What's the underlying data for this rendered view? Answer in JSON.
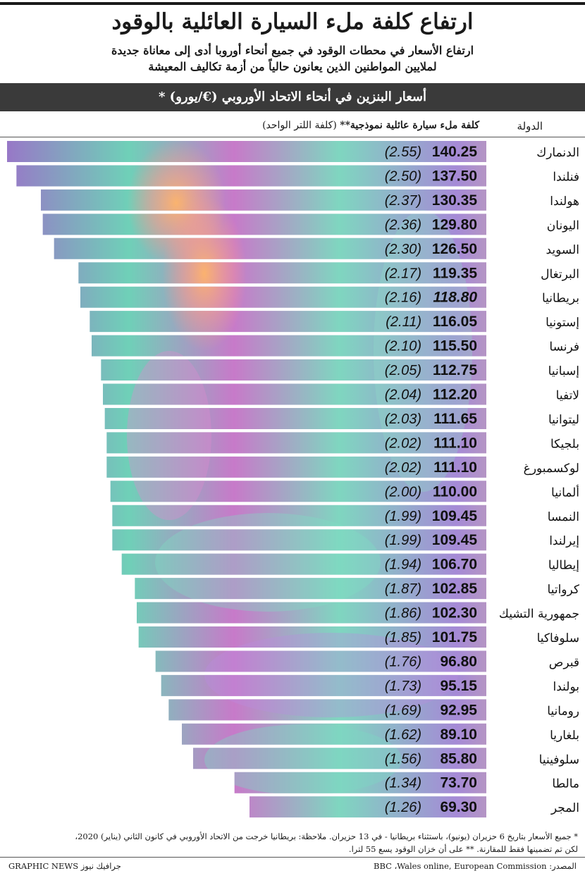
{
  "header": {
    "title": "ارتفاع كلفة ملء السيارة العائلية بالوقود",
    "subtitle_line1": "ارتفاع الأسعار في محطات الوقود في جميع أنحاء أوروبا أدى إلى معاناة جديدة",
    "subtitle_line2": "لملايين المواطنين الذين يعانون حالياً من أزمة تكاليف المعيشة",
    "banner": "أسعار البنزين في أنحاء الاتحاد الأوروبي (€/يورو) *"
  },
  "columns": {
    "country": "الدولة",
    "cost_bold": "كلفة ملء سيارة عائلية نموذجية**",
    "cost_note": " (كلفة اللتر الواحد)"
  },
  "chart_data": {
    "type": "bar",
    "orientation": "horizontal",
    "title": "أسعار البنزين في أنحاء الاتحاد الأوروبي (€/يورو) *",
    "units": "€",
    "categories": [
      "الدنمارك",
      "فنلندا",
      "هولندا",
      "اليونان",
      "السويد",
      "البرتغال",
      "بريطانيا",
      "إستونيا",
      "فرنسا",
      "إسبانيا",
      "لاتفيا",
      "ليتوانيا",
      "بلجيكا",
      "لوكسمبورغ",
      "ألمانيا",
      "النمسا",
      "إيرلندا",
      "إيطاليا",
      "كرواتيا",
      "جمهورية التشيك",
      "سلوفاكيا",
      "قبرص",
      "بولندا",
      "رومانيا",
      "بلغاريا",
      "سلوفينيا",
      "مالطا",
      "المجر"
    ],
    "values": [
      140.25,
      137.5,
      130.35,
      129.8,
      126.5,
      119.35,
      118.8,
      116.05,
      115.5,
      112.75,
      112.2,
      111.65,
      111.1,
      111.1,
      110.0,
      109.45,
      109.45,
      106.7,
      102.85,
      102.3,
      101.75,
      96.8,
      95.15,
      92.95,
      89.1,
      85.8,
      73.7,
      69.3
    ],
    "value_labels": [
      "140.25",
      "137.50",
      "130.35",
      "129.80",
      "126.50",
      "119.35",
      "118.80",
      "116.05",
      "115.50",
      "112.75",
      "112.20",
      "111.65",
      "111.10",
      "111.10",
      "110.00",
      "109.45",
      "109.45",
      "106.70",
      "102.85",
      "102.30",
      "101.75",
      "96.80",
      "95.15",
      "92.95",
      "89.10",
      "85.80",
      "73.70",
      "69.30"
    ],
    "per_litre": [
      "(2.55)",
      "(2.50)",
      "(2.37)",
      "(2.36)",
      "(2.30)",
      "(2.17)",
      "(2.16)",
      "(2.11)",
      "(2.10)",
      "(2.05)",
      "(2.04)",
      "(2.03)",
      "(2.02)",
      "(2.02)",
      "(2.00)",
      "(1.99)",
      "(1.99)",
      "(1.94)",
      "(1.87)",
      "(1.86)",
      "(1.85)",
      "(1.76)",
      "(1.73)",
      "(1.69)",
      "(1.62)",
      "(1.56)",
      "(1.34)",
      "(1.26)"
    ],
    "italic_value_index": 6
  },
  "notes": {
    "line1": "* جميع الأسعار بتاريخ 6 حزيران (يونيو)، باستثناء بريطانيا - في 13 حزيران. ملاحظة: بريطانيا خرجت من الاتحاد الأوروبي في كانون الثاني (يناير) 2020،",
    "line2": "لكن تم تضمينها فقط للمقارنة. ** على أن خزان الوقود يسع 55 لترا."
  },
  "source": "المصدر: BBC ،Wales online, European Commission",
  "credit": "GRAPHIC NEWS جرافيك نيوز"
}
